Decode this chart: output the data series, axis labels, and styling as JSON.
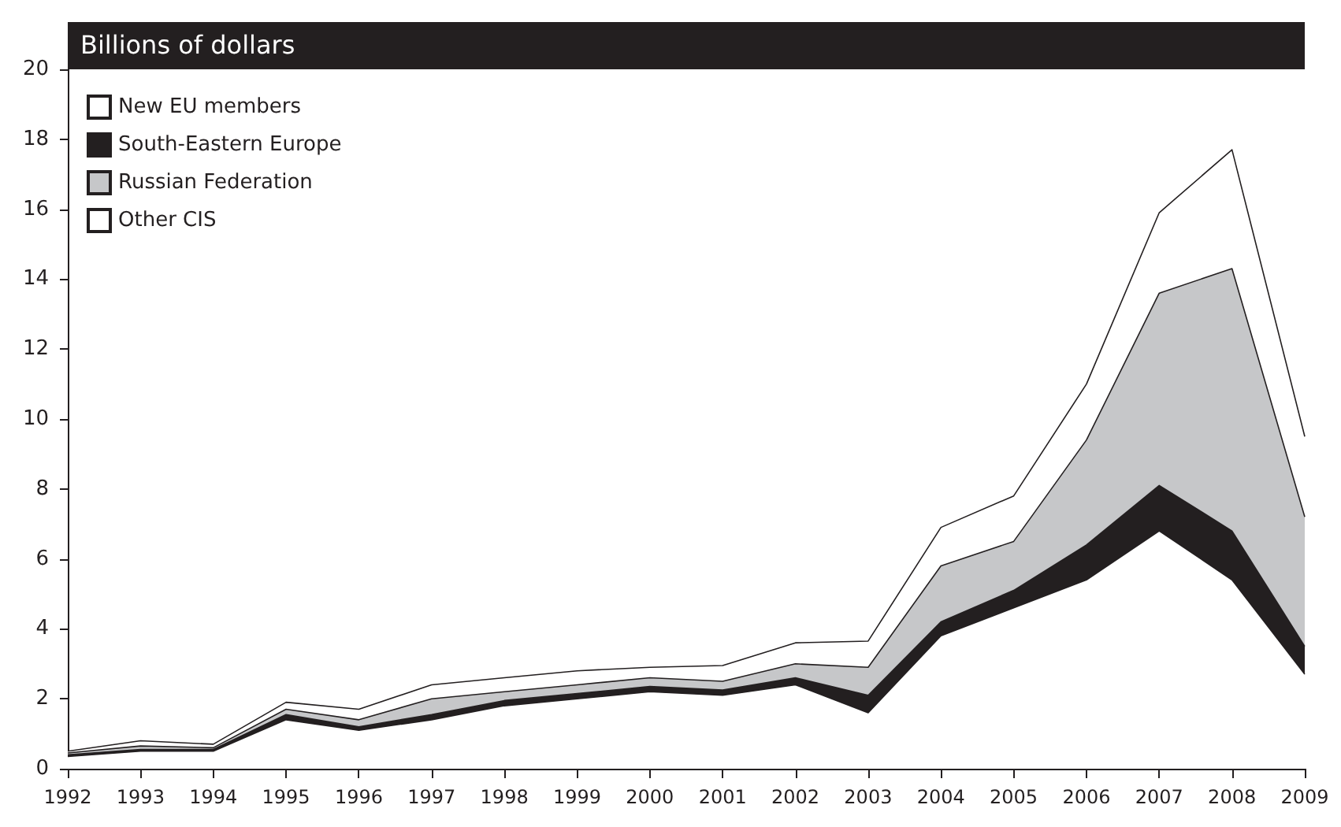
{
  "chart_data": {
    "type": "area",
    "title": "Billions of dollars",
    "stacked": true,
    "legend": "top left",
    "grid": false,
    "categories": [
      "1992",
      "1993",
      "1994",
      "1995",
      "1996",
      "1997",
      "1998",
      "1999",
      "2000",
      "2001",
      "2002",
      "2003",
      "2004",
      "2005",
      "2006",
      "2007",
      "2008",
      "2009"
    ],
    "ylim": [
      0,
      20
    ],
    "yticks": [
      0,
      2,
      4,
      6,
      8,
      10,
      12,
      14,
      16,
      18,
      20
    ],
    "series": [
      {
        "name": "New EU members",
        "color": "#ffffff",
        "values": [
          0.35,
          0.5,
          0.5,
          1.4,
          1.1,
          1.4,
          1.8,
          2.0,
          2.2,
          2.1,
          2.4,
          1.6,
          3.8,
          4.6,
          5.4,
          6.8,
          5.4,
          2.7
        ]
      },
      {
        "name": "South-Eastern Europe",
        "color": "#231f20",
        "values": [
          0.05,
          0.05,
          0.05,
          0.15,
          0.1,
          0.15,
          0.15,
          0.15,
          0.15,
          0.15,
          0.2,
          0.5,
          0.4,
          0.5,
          1.0,
          1.3,
          1.4,
          0.8
        ]
      },
      {
        "name": "Russian Federation",
        "color": "#c6c7c9",
        "values": [
          0.05,
          0.1,
          0.05,
          0.15,
          0.2,
          0.45,
          0.25,
          0.25,
          0.25,
          0.25,
          0.4,
          0.8,
          1.6,
          1.4,
          3.0,
          5.5,
          7.5,
          3.7
        ]
      },
      {
        "name": "Other CIS",
        "color": "#ffffff",
        "values": [
          0.05,
          0.15,
          0.1,
          0.2,
          0.3,
          0.4,
          0.4,
          0.4,
          0.3,
          0.45,
          0.6,
          0.75,
          1.1,
          1.3,
          1.6,
          2.3,
          3.4,
          2.3
        ]
      }
    ]
  }
}
